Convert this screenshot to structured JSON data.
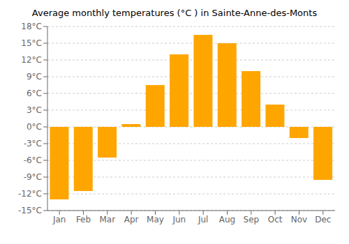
{
  "chart_data": {
    "type": "bar",
    "title": "Average monthly temperatures (°C ) in Sainte-Anne-des-Monts",
    "categories": [
      "Jan",
      "Feb",
      "Mar",
      "Apr",
      "May",
      "Jun",
      "Jul",
      "Aug",
      "Sep",
      "Oct",
      "Nov",
      "Dec"
    ],
    "values": [
      -13,
      -11.5,
      -5.5,
      0.5,
      7.5,
      13,
      16.5,
      15,
      10,
      4,
      -2,
      -9.5
    ],
    "color": "#FFA500",
    "ylim": [
      -15,
      18
    ],
    "yticks": [
      {
        "value": -15,
        "label": "-15°C"
      },
      {
        "value": -12,
        "label": "-12°C"
      },
      {
        "value": -9,
        "label": "-9°C"
      },
      {
        "value": -6,
        "label": "-6°C"
      },
      {
        "value": -3,
        "label": "-3°C"
      },
      {
        "value": 0,
        "label": "0°C"
      },
      {
        "value": 3,
        "label": "3°C"
      },
      {
        "value": 6,
        "label": "6°C"
      },
      {
        "value": 9,
        "label": "9°C"
      },
      {
        "value": 12,
        "label": "12°C"
      },
      {
        "value": 15,
        "label": "15°C"
      },
      {
        "value": 18,
        "label": "18°C"
      }
    ],
    "grid": true
  }
}
